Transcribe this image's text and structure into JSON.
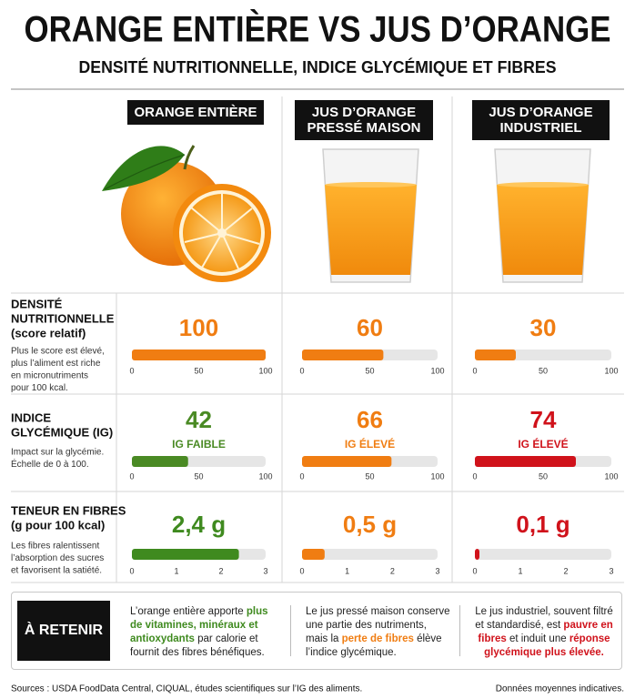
{
  "title": "ORANGE ENTIÈRE VS JUS D’ORANGE",
  "subtitle": "DENSITÉ NUTRITIONNELLE, INDICE GLYCÉMIQUE ET FIBRES",
  "columns": [
    [
      "ORANGE ENTIÈRE"
    ],
    [
      "JUS D’ORANGE",
      "PRESSÉ MAISON"
    ],
    [
      "JUS D’ORANGE",
      "INDUSTRIEL"
    ]
  ],
  "rows": [
    {
      "label": [
        "DENSITÉ",
        "NUTRITIONNELLE",
        "(score relatif)"
      ],
      "note": [
        "Plus le score est élevé,",
        "plus l’aliment est riche",
        "en micronutriments",
        "pour 100 kcal."
      ],
      "xlim": [
        0,
        100
      ],
      "xticks": [
        0,
        50,
        100
      ],
      "values": [
        100,
        60,
        30
      ],
      "colors": [
        "#f07d12",
        "#f07d12",
        "#f07d12"
      ]
    },
    {
      "label": [
        "INDICE",
        "GLYCÉMIQUE (IG)"
      ],
      "note": [
        "Impact sur la glycémie.",
        "Échelle de 0 à 100."
      ],
      "xlim": [
        0,
        100
      ],
      "xticks": [
        0,
        50,
        100
      ],
      "values": [
        42,
        66,
        74
      ],
      "tags": [
        "IG FAIBLE",
        "IG ÉLEVÉ",
        "IG ÉLEVÉ"
      ],
      "colors": [
        "#4a8a24",
        "#f07d12",
        "#d0121b"
      ]
    },
    {
      "label": [
        "TENEUR EN FIBRES",
        "(g pour 100 kcal)"
      ],
      "note": [
        "Les fibres ralentissent",
        "l’absorption des sucres",
        "et favorisent la satiété."
      ],
      "xlim": [
        0,
        3
      ],
      "xticks": [
        0,
        1,
        2,
        3
      ],
      "values": [
        2.4,
        0.5,
        0.1
      ],
      "value_labels": [
        "2,4 g",
        "0,5 g",
        "0,1 g"
      ],
      "colors": [
        "#3f8a1f",
        "#f07d12",
        "#d0121b"
      ]
    }
  ],
  "takeaway": {
    "label": "À RETENIR",
    "items": [
      [
        {
          "text": "L’orange entière apporte "
        },
        {
          "text": "plus de vitamines, minéraux et antioxydants",
          "color": "#3f8a1f"
        },
        {
          "text": " par calorie et fournit des fibres bénéfiques."
        }
      ],
      [
        {
          "text": "Le jus pressé maison conserve une partie des nutriments, mais la "
        },
        {
          "text": "perte de fibres",
          "color": "#f07d12"
        },
        {
          "text": " élève l’indice glycémique."
        }
      ],
      [
        {
          "text": "Le jus industriel, souvent filtré et standardisé, est "
        },
        {
          "text": "pauvre en fibres",
          "color": "#d0121b"
        },
        {
          "text": " et induit une "
        },
        {
          "text": "réponse glycémique plus élevée.",
          "color": "#d0121b"
        }
      ]
    ]
  },
  "footer": {
    "sources": "Sources : USDA FoodData Central, CIQUAL, études scientifiques sur l’IG des aliments.",
    "note": "Données moyennes indicatives."
  }
}
